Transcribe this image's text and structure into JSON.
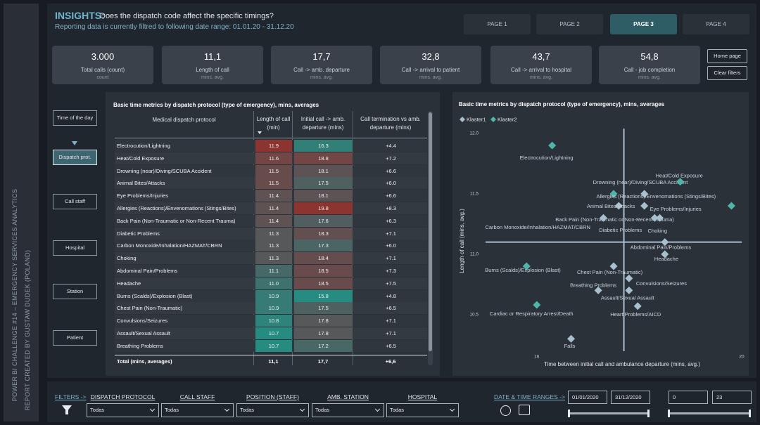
{
  "sidebar": {
    "line1": "POWER BI CHALLENGE #14 – EMERGENCY SERVICES ANALYTICS",
    "line2": "REPORT CREATED BY GUSTAW DUDEK (POLAND)"
  },
  "header": {
    "label": "INSIGHTS:",
    "question": "Does the dispatch code affect the specific timings?",
    "note": "Reporting data is currently filtred to following date range: 01.01.20 - 31.12.20"
  },
  "pages": [
    {
      "label": "PAGE 1"
    },
    {
      "label": "PAGE 2"
    },
    {
      "label": "PAGE 3",
      "active": true
    },
    {
      "label": "PAGE 4"
    }
  ],
  "kpis": [
    {
      "value": "3.000",
      "label": "Total calls (count)",
      "unit": "count"
    },
    {
      "value": "11,1",
      "label": "Length of call",
      "unit": "mins. avg."
    },
    {
      "value": "17,7",
      "label": "Call -> amb. departure",
      "unit": "mins. avg."
    },
    {
      "value": "32,8",
      "label": "Call -> arrival to patient",
      "unit": "mins. avg."
    },
    {
      "value": "43,7",
      "label": "Call -> arrival to hospital",
      "unit": "mins. avg."
    },
    {
      "value": "54,8",
      "label": "Call - job completion",
      "unit": "mins. avg."
    }
  ],
  "buttons": [
    "Home page",
    "Clear filters"
  ],
  "nav": [
    {
      "label": "Time of the day"
    },
    {
      "label": "Dispatch prot.",
      "active": true
    },
    {
      "label": "Call staff"
    },
    {
      "label": "Hospital"
    },
    {
      "label": "Station"
    },
    {
      "label": "Patient"
    }
  ],
  "table": {
    "title": "Basic time metrics by dispatch protocol (type of emergency), mins, averages",
    "columns": [
      "Medical dispatch protocol",
      "Length of call (min)",
      "Initial call -> amb. departure (mins)",
      "Call termination vs amb. departure (mins)"
    ],
    "rows": [
      [
        "Electrocution/Lightning",
        "11.9",
        "16.3",
        "+4.4"
      ],
      [
        "Heat/Cold Exposure",
        "11.6",
        "18.8",
        "+7.2"
      ],
      [
        "Drowning (near)/Diving/SCUBA Accident",
        "11.5",
        "18.1",
        "+6.6"
      ],
      [
        "Animal Bites/Attacks",
        "11.5",
        "17.5",
        "+6.0"
      ],
      [
        "Eye Problems/Injuries",
        "11.4",
        "18.1",
        "+6.6"
      ],
      [
        "Allergies (Reactions)/Envenomations (Stings/Bites)",
        "11.4",
        "19.8",
        "+8.3"
      ],
      [
        "Back Pain (Non-Traumatic or Non-Recent Trauma)",
        "11.4",
        "17.6",
        "+6.3"
      ],
      [
        "Diabetic Problems",
        "11.3",
        "18.3",
        "+7.1"
      ],
      [
        "Carbon Monoxide/Inhalation/HAZMAT/CBRN",
        "11.3",
        "17.3",
        "+6.0"
      ],
      [
        "Choking",
        "11.3",
        "18.4",
        "+7.1"
      ],
      [
        "Abdominal Pain/Problems",
        "11.1",
        "18.5",
        "+7.3"
      ],
      [
        "Headache",
        "11.0",
        "18.5",
        "+7.5"
      ],
      [
        "Burns (Scalds)/Explosion (Blast)",
        "10.9",
        "15.8",
        "+4.8"
      ],
      [
        "Chest Pain (Non-Traumatic)",
        "10.9",
        "17.5",
        "+6.5"
      ],
      [
        "Convulsions/Seizures",
        "10.8",
        "17.8",
        "+7.1"
      ],
      [
        "Assault/Sexual Assault",
        "10.7",
        "17.8",
        "+7.1"
      ],
      [
        "Breathing Problems",
        "10.7",
        "17.2",
        "+6.5"
      ]
    ],
    "total": [
      "Total (mins, averages)",
      "11,1",
      "17,7",
      "+6,6"
    ]
  },
  "chart_data": {
    "type": "scatter",
    "title": "Basic time metrics by dispatch protocol (type of emergency), mins, averages",
    "x_label": "Time between initial call and ambulance departure (mins, avg.)",
    "y_label": "Length of call (mins, avg.)",
    "xlim": [
      15,
      20
    ],
    "ylim": [
      10.15,
      12.04
    ],
    "xticks": [
      16,
      20
    ],
    "yticks": [
      10.5,
      {
        "value": 11,
        "label": "11.0"
      },
      11.5,
      {
        "value": 12,
        "label": "12.0"
      }
    ],
    "ref_x": 17.7,
    "ref_y": 11.1,
    "ref_color": "#a9bccd",
    "series": [
      {
        "name": "Klaster1",
        "color": "#a7c0cd",
        "labels": [
          "Drowning (near)/Diving/SCUBA Accident",
          "Eye Problems/Injuries",
          "Back Pain (Non-Traumatic or Non-Recent Trauma)",
          "Diabetic Problems",
          "Carbon Monoxide/Inhalation/HAZMAT/CBRN",
          "Choking",
          "Abdominal Pain/Problems",
          "Headache",
          "Chest Pain (Non-Traumatic)",
          "Convulsions/Seizures",
          "Assault/Sexual Assault",
          "Breathing Problems",
          "Heart Problems/AICD",
          "Falls"
        ],
        "x": [
          18.1,
          18.1,
          17.6,
          18.3,
          17.3,
          18.4,
          18.5,
          18.5,
          17.5,
          17.8,
          17.8,
          17.2,
          17.97,
          16.67
        ],
        "values": [
          11.5,
          11.4,
          11.4,
          11.3,
          11.3,
          11.3,
          11.1,
          11.0,
          10.9,
          10.8,
          10.7,
          10.7,
          10.57,
          10.3
        ]
      },
      {
        "name": "Klaster2",
        "color": "#4fb5ab",
        "labels": [
          "Electrocution/Lightning",
          "Heat/Cold Exposure",
          "Animal Bites/Attacks",
          "Allergies (Reactions)/Envenomations (Stings/Bites)",
          "Burns (Scalds)/Explosion (Blast)",
          "Cardiac or Respiratory Arrest/Death"
        ],
        "x": [
          16.3,
          18.8,
          17.5,
          19.8,
          15.8,
          16.0
        ],
        "values": [
          11.9,
          11.6,
          11.5,
          11.4,
          10.9,
          10.58
        ]
      }
    ]
  },
  "filters": {
    "label": "FILTERS ->",
    "fields": [
      {
        "label": "DISPATCH PROTOCOL",
        "value": "Todas"
      },
      {
        "label": "CALL STAFF",
        "value": "Todas"
      },
      {
        "label": "POSITION (STAFF)",
        "value": "Todas"
      },
      {
        "label": "AMB. STATION",
        "value": "Todas"
      },
      {
        "label": "HOSPITAL",
        "value": "Todas"
      }
    ],
    "date_label": "DATE & TIME RANGES ->",
    "dates": [
      "01/01/2020",
      "31/12/2020"
    ],
    "hours": [
      "0",
      "23"
    ]
  }
}
